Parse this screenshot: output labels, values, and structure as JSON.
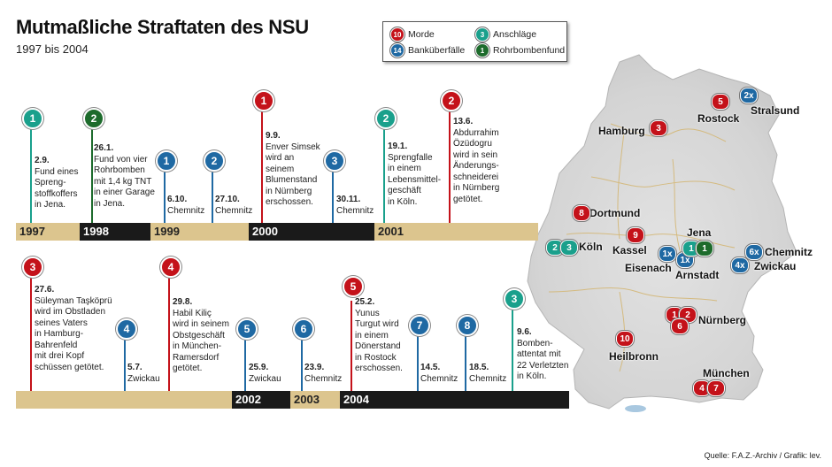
{
  "title": "Mutmaßliche Straftaten des NSU",
  "subtitle": "1997 bis 2004",
  "colors": {
    "morde": "#c4121a",
    "banks": "#1f69a3",
    "anschlaege": "#1aa08c",
    "rohr": "#1d6b2c",
    "bar_light": "#dcc58e",
    "bar_dark": "#1a1a1a"
  },
  "legend": [
    {
      "num": "10",
      "label": "Morde",
      "color": "#c4121a"
    },
    {
      "num": "3",
      "label": "Anschläge",
      "color": "#1aa08c"
    },
    {
      "num": "14",
      "label": "Banküberfälle",
      "color": "#1f69a3"
    },
    {
      "num": "1",
      "label": "Rohrbombenfund",
      "color": "#1d6b2c"
    }
  ],
  "years_top": [
    "1997",
    "1998",
    "1999",
    "2000",
    "2001"
  ],
  "years_bottom": [
    "2002",
    "2003",
    "2004"
  ],
  "events_top": [
    {
      "num": "1",
      "color": "#1aa08c",
      "date": "2.9.",
      "text": "Fund eines\nSpreng-\nstoffkoffers\nin Jena."
    },
    {
      "num": "2",
      "color": "#1d6b2c",
      "date": "26.1.",
      "text": "Fund von vier\nRohrbomben\nmit 1,4 kg TNT\nin einer Garage\nin Jena."
    },
    {
      "num": "1",
      "color": "#1f69a3",
      "date": "6.10.",
      "text": "Chemnitz"
    },
    {
      "num": "2",
      "color": "#1f69a3",
      "date": "27.10.",
      "text": "Chemnitz"
    },
    {
      "num": "1",
      "color": "#c4121a",
      "date": "9.9.",
      "text": "Enver Simsek\nwird an\nseinem\nBlumenstand\nin Nürnberg\nerschossen."
    },
    {
      "num": "3",
      "color": "#1f69a3",
      "date": "30.11.",
      "text": "Chemnitz"
    },
    {
      "num": "2",
      "color": "#1aa08c",
      "date": "19.1.",
      "text": "Sprengfalle\nin einem\nLebensmittel-\ngeschäft\nin Köln."
    },
    {
      "num": "2",
      "color": "#c4121a",
      "date": "13.6.",
      "text": "Abdurrahim\nÖzüdogru\nwird in sein\nÄnderungs-\nschneiderei\nin Nürnberg\ngetötet."
    }
  ],
  "events_bottom": [
    {
      "num": "3",
      "color": "#c4121a",
      "date": "27.6.",
      "text": "Süleyman Taşköprü\nwird im Obstladen\nseines Vaters\nin Hamburg-\nBahrenfeld\nmit drei Kopf\nschüssen getötet."
    },
    {
      "num": "4",
      "color": "#1f69a3",
      "date": "5.7.",
      "text": "Zwickau"
    },
    {
      "num": "4",
      "color": "#c4121a",
      "date": "29.8.",
      "text": "Habil Kiliç\nwird in seinem\nObstgeschäft\nin München-\nRamersdorf\ngetötet."
    },
    {
      "num": "5",
      "color": "#1f69a3",
      "date": "25.9.",
      "text": "Zwickau"
    },
    {
      "num": "6",
      "color": "#1f69a3",
      "date": "23.9.",
      "text": "Chemnitz"
    },
    {
      "num": "5",
      "color": "#c4121a",
      "date": "25.2.",
      "text": "Yunus\nTurgut wird\nin einem\nDönerstand\nin Rostock\nerschossen."
    },
    {
      "num": "7",
      "color": "#1f69a3",
      "date": "14.5.",
      "text": "Chemnitz"
    },
    {
      "num": "8",
      "color": "#1f69a3",
      "date": "18.5.",
      "text": "Chemnitz"
    },
    {
      "num": "3",
      "color": "#1aa08c",
      "date": "9.6.",
      "text": "Bomben-\nattentat mit\n22 Verletzten\nin Köln."
    }
  ],
  "map": {
    "cities": [
      "Stralsund",
      "Rostock",
      "Hamburg",
      "Dortmund",
      "Kassel",
      "Köln",
      "Jena",
      "Eisenach",
      "Arnstadt",
      "Chemnitz",
      "Zwickau",
      "Nürnberg",
      "Heilbronn",
      "München"
    ],
    "markers": [
      {
        "label": "2x",
        "color": "#1f69a3"
      },
      {
        "label": "5",
        "color": "#c4121a"
      },
      {
        "label": "3",
        "color": "#c4121a"
      },
      {
        "label": "8",
        "color": "#c4121a"
      },
      {
        "label": "9",
        "color": "#c4121a"
      },
      {
        "label": "2",
        "color": "#1aa08c"
      },
      {
        "label": "3",
        "color": "#1aa08c"
      },
      {
        "label": "1x",
        "color": "#1f69a3"
      },
      {
        "label": "1x",
        "color": "#1f69a3"
      },
      {
        "label": "1",
        "color": "#1aa08c"
      },
      {
        "label": "1",
        "color": "#1d6b2c"
      },
      {
        "label": "6x",
        "color": "#1f69a3"
      },
      {
        "label": "4x",
        "color": "#1f69a3"
      },
      {
        "label": "1",
        "color": "#c4121a"
      },
      {
        "label": "2",
        "color": "#c4121a"
      },
      {
        "label": "6",
        "color": "#c4121a"
      },
      {
        "label": "10",
        "color": "#c4121a"
      },
      {
        "label": "4",
        "color": "#c4121a"
      },
      {
        "label": "7",
        "color": "#c4121a"
      }
    ]
  },
  "source": "Quelle: F.A.Z.-Archiv / Grafik: lev."
}
